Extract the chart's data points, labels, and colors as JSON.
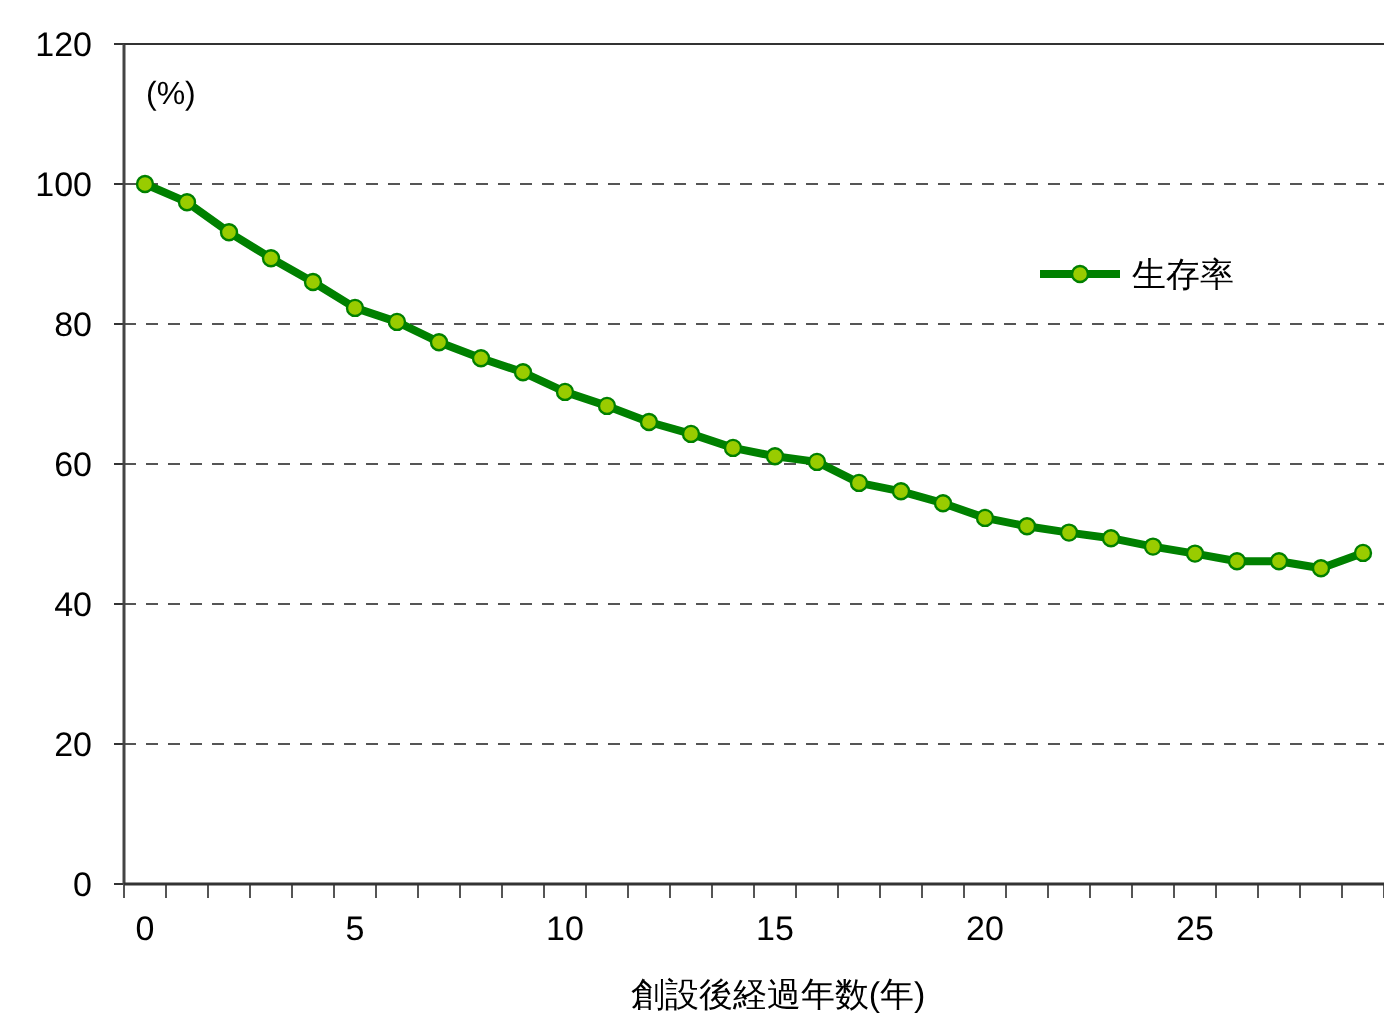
{
  "chart_data": {
    "type": "line",
    "xlabel": "創設後経過年数(年)",
    "ylabel": "(%)",
    "categories": [
      "0",
      null,
      null,
      null,
      null,
      "5",
      null,
      null,
      null,
      null,
      "10",
      null,
      null,
      null,
      null,
      "15",
      null,
      null,
      null,
      null,
      "20",
      null,
      null,
      null,
      null,
      "25",
      null,
      null,
      null,
      null
    ],
    "series": [
      {
        "name": "生存率",
        "color": "#008000",
        "values": [
          100,
          97.4,
          93.1,
          89.4,
          86,
          82.3,
          80.3,
          77.4,
          75.1,
          73.1,
          70.3,
          68.3,
          66,
          64.3,
          62.3,
          61.1,
          60.3,
          57.3,
          56.1,
          54.4,
          52.3,
          51.1,
          50.2,
          49.4,
          48.2,
          47.2,
          46.1,
          46.1,
          45.1,
          47.3
        ]
      }
    ],
    "ylim": [
      0,
      120
    ],
    "yticks": [
      0,
      20,
      40,
      60,
      80,
      100,
      120
    ],
    "grid": "y",
    "legend": "right",
    "marker": "circle",
    "line_style": "solid"
  }
}
